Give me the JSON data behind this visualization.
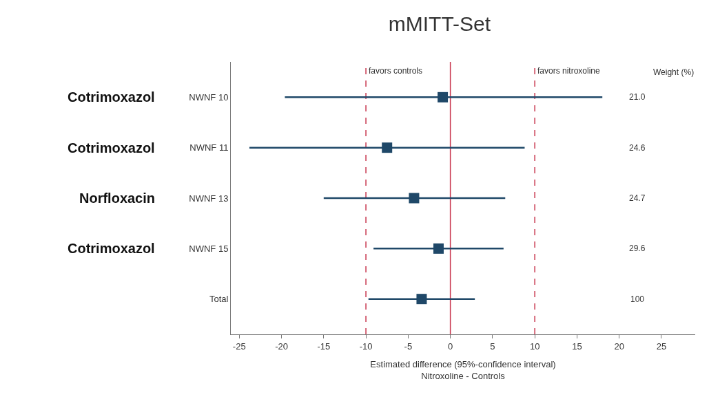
{
  "chart_data": {
    "type": "scatter",
    "title": "mMITT-Set",
    "xlabel": "Estimated difference (95%-confidence interval)\nNitroxoline - Controls",
    "categories": [
      "NWNF 10",
      "NWNF 11",
      "NWNF 13",
      "NWNF 15",
      "Total"
    ],
    "orientation": "horizontal",
    "color": "#1f4868",
    "values": [
      -0.9,
      -7.5,
      -4.3,
      -1.4,
      -3.4
    ],
    "errors": [
      [
        -19.6,
        18.0
      ],
      [
        -23.8,
        8.8
      ],
      [
        -15.0,
        6.5
      ],
      [
        -9.1,
        6.3
      ],
      [
        -9.7,
        2.9
      ]
    ],
    "marker": "square",
    "xlim": [
      -26,
      29
    ],
    "xticks": [
      -25,
      -20,
      -15,
      -10,
      -5,
      0,
      5,
      10,
      15,
      20,
      25
    ],
    "ref_lines": [
      {
        "axis": "x",
        "value": -10,
        "color": "#c8364f",
        "line_style": "dashed"
      },
      {
        "axis": "x",
        "value": 0,
        "color": "#c8364f",
        "line_style": "solid"
      },
      {
        "axis": "x",
        "value": 10,
        "color": "#c8364f",
        "line_style": "dashed"
      }
    ],
    "annotations": [
      "favors controls",
      "favors nitroxoline",
      "Weight (%)",
      "21.0",
      "24.6",
      "24.7",
      "29.6",
      "100",
      "Cotrimoxazol",
      "Cotrimoxazol",
      "Norfloxacin",
      "Cotrimoxazol"
    ],
    "grid": false
  }
}
